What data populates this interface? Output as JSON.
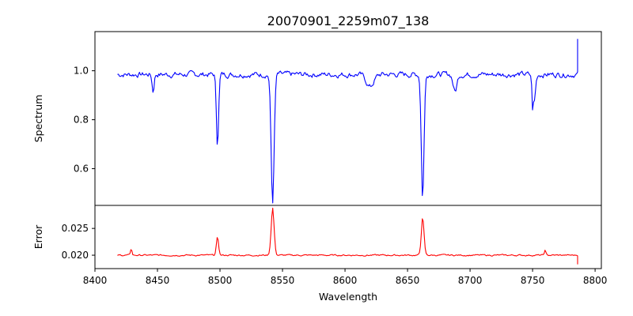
{
  "chart_data": {
    "title": "20070901_2259m07_138",
    "xlabel": "Wavelength",
    "xlim": [
      8400,
      8805
    ],
    "xticks": [
      "8400",
      "8450",
      "8500",
      "8550",
      "8600",
      "8650",
      "8700",
      "8750",
      "8800"
    ],
    "grid": false,
    "panels": [
      {
        "name": "spectrum",
        "type": "line",
        "ylabel": "Spectrum",
        "ylim": [
          0.45,
          1.16
        ],
        "yticks": [
          "0.6",
          "0.8",
          "1.0"
        ],
        "color": "#0000ff",
        "x_start": 8418,
        "x_end": 8786,
        "baseline": 0.985,
        "endpoint": {
          "x": 8786,
          "y": 1.13
        },
        "features": [
          {
            "center": 8446.5,
            "depth": 0.07,
            "width": 0.8
          },
          {
            "center": 8498.0,
            "depth": 0.28,
            "width": 0.9
          },
          {
            "center": 8542.1,
            "depth": 0.52,
            "width": 1.2
          },
          {
            "center": 8662.1,
            "depth": 0.49,
            "width": 1.1
          },
          {
            "center": 8620.0,
            "depth": 0.05,
            "width": 3.0
          },
          {
            "center": 8688.0,
            "depth": 0.07,
            "width": 1.5
          },
          {
            "center": 8751.0,
            "depth": 0.12,
            "width": 1.2
          }
        ],
        "key_points": [
          {
            "x": 8498,
            "y": 0.7
          },
          {
            "x": 8542,
            "y": 0.46
          },
          {
            "x": 8662,
            "y": 0.49
          },
          {
            "x": 8750,
            "y": 0.84
          }
        ]
      },
      {
        "name": "error",
        "type": "line",
        "ylabel": "Error",
        "ylim": [
          0.0175,
          0.0293
        ],
        "yticks": [
          "0.020",
          "0.025"
        ],
        "color": "#ff0000",
        "x_start": 8418,
        "x_end": 8786,
        "baseline": 0.02,
        "endpoint": {
          "x": 8786,
          "y": 0.0183
        },
        "features": [
          {
            "center": 8429.0,
            "depth": 0.0012,
            "width": 0.6
          },
          {
            "center": 8498.0,
            "depth": 0.0033,
            "width": 0.9
          },
          {
            "center": 8542.1,
            "depth": 0.0085,
            "width": 1.2
          },
          {
            "center": 8662.1,
            "depth": 0.0068,
            "width": 1.1
          },
          {
            "center": 8760.0,
            "depth": 0.0009,
            "width": 0.6
          }
        ],
        "key_points": [
          {
            "x": 8498,
            "y": 0.0233
          },
          {
            "x": 8542,
            "y": 0.0288
          },
          {
            "x": 8662,
            "y": 0.0268
          }
        ]
      }
    ]
  }
}
